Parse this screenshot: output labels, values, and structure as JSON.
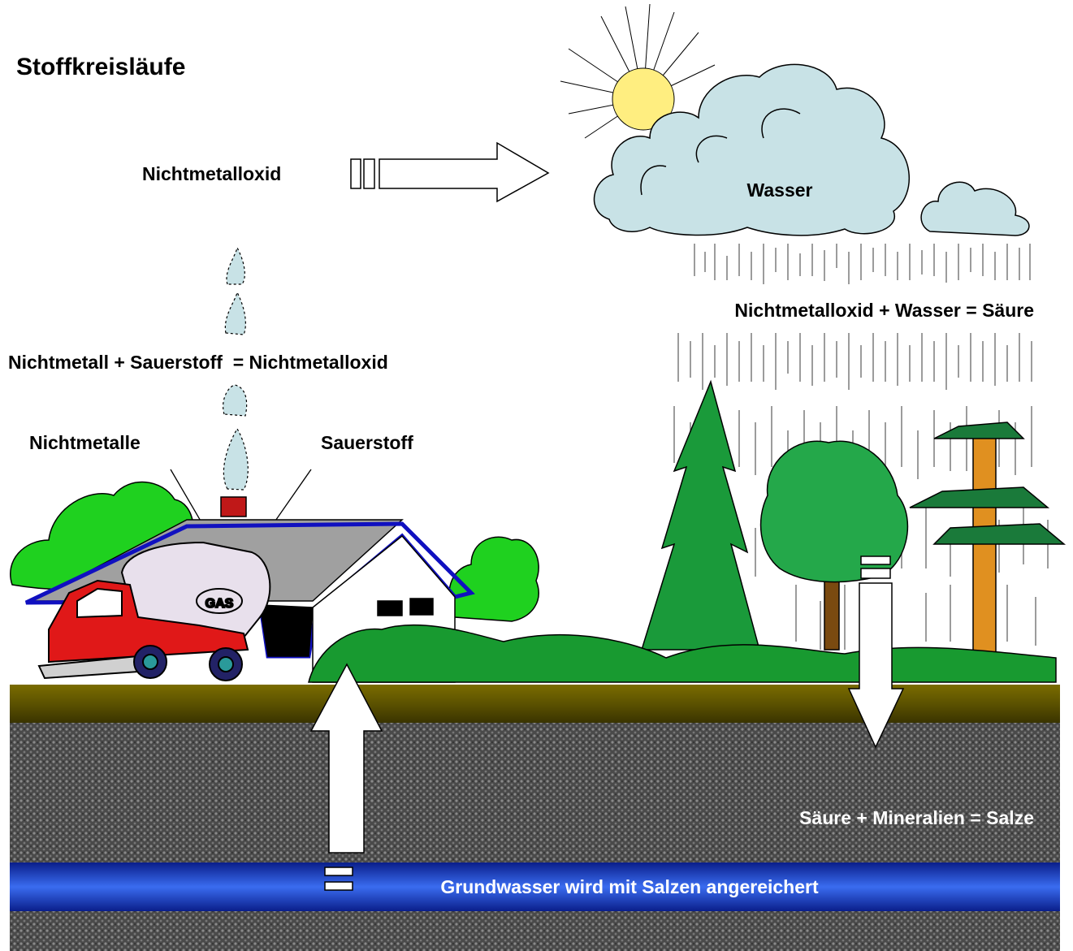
{
  "title": "Stoffkreisläufe",
  "labels": {
    "oxide_arrow": "Nichtmetalloxid",
    "cloud": "Wasser",
    "acid_formation": "Nichtmetalloxid + Wasser = Säure",
    "oxide_formation": "Nichtmetall + Sauerstoff  = Nichtmetalloxid",
    "nonmetals": "Nichtmetalle",
    "oxygen": "Sauerstoff",
    "truck_tank": "GAS",
    "salt_formation": "Säure + Mineralien = Salze",
    "groundwater": "Grundwasser wird mit Salzen angereichert"
  }
}
